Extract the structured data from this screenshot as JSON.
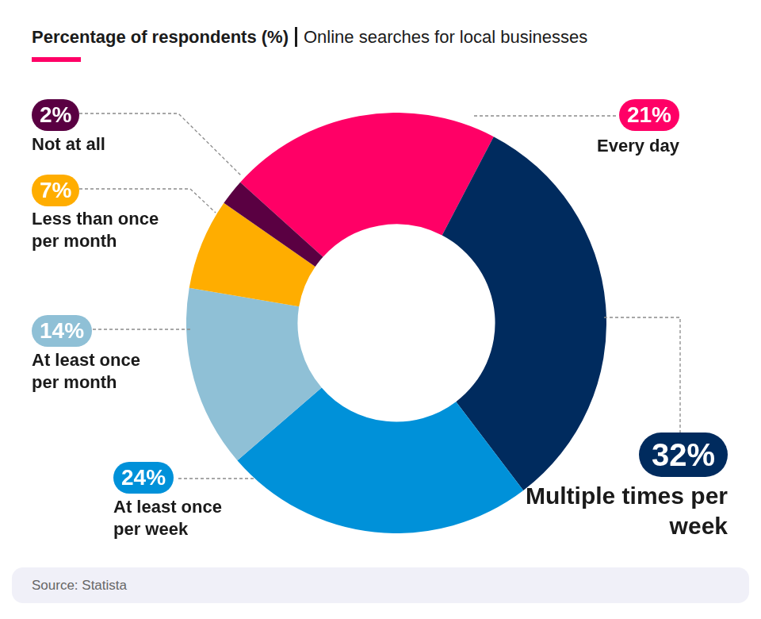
{
  "chart_data": {
    "type": "doughnut",
    "title": "Percentage of respondents (%)",
    "subtitle": "Online searches for local businesses",
    "categories": [
      "Every day",
      "Multiple times per week",
      "At least once per week",
      "At least once per month",
      "Less than once per month",
      "Not at all"
    ],
    "values": [
      21,
      32,
      24,
      14,
      7,
      2
    ],
    "value_labels": [
      "21%",
      "32%",
      "24%",
      "14%",
      "7%",
      "2%"
    ],
    "colors": [
      "#ff0066",
      "#002b5e",
      "#0091d9",
      "#8fc0d6",
      "#ffad00",
      "#5a0042"
    ],
    "data_labels": true,
    "legend": "none",
    "source": "Source: Statista"
  }
}
